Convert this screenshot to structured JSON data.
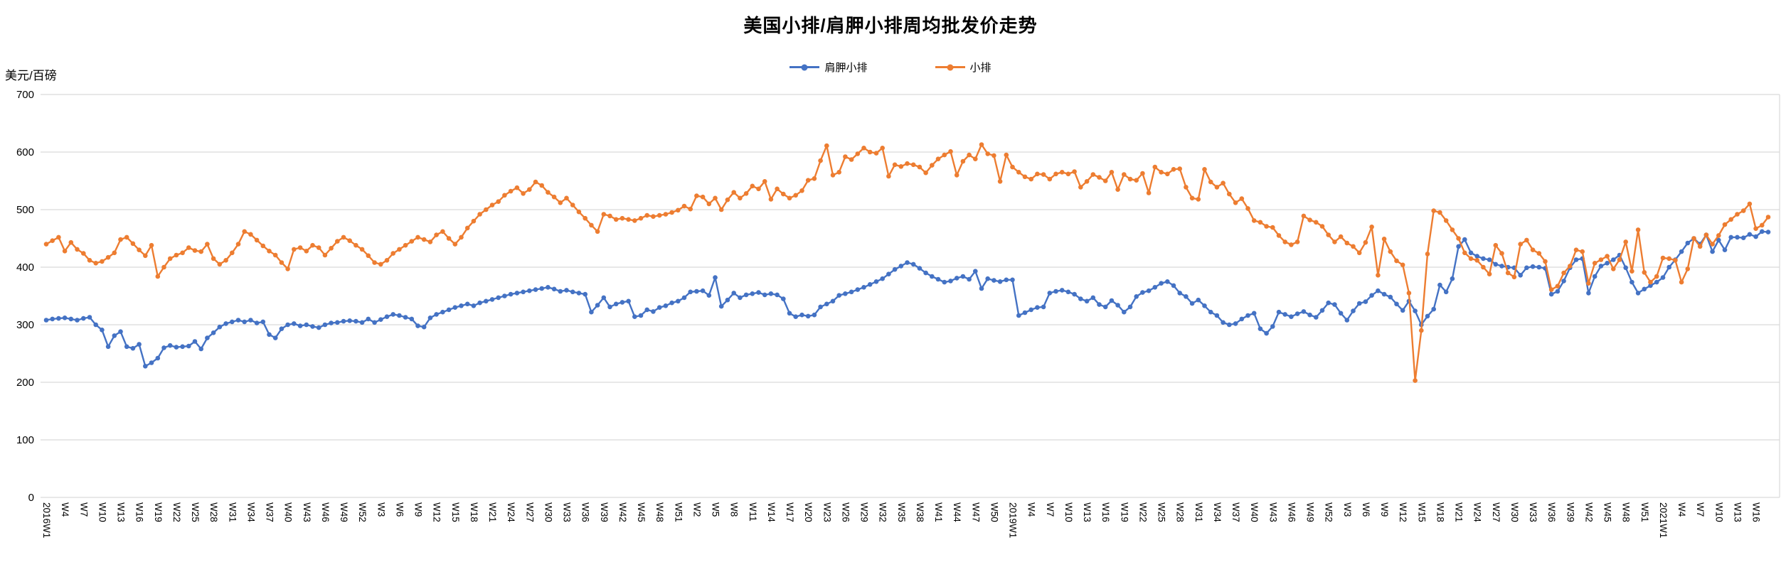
{
  "title": "美国小排/肩胛小排周均批发价走势",
  "y_axis": {
    "unit_label": "美元/百磅",
    "min": 0,
    "max": 700,
    "step": 100,
    "tick_labels": [
      "0",
      "100",
      "200",
      "300",
      "400",
      "500",
      "600",
      "700"
    ]
  },
  "legend": [
    {
      "label": "肩胛小排",
      "color": "#4472C4"
    },
    {
      "label": "小排",
      "color": "#ED7D31"
    }
  ],
  "colors": {
    "grid": "#D9D9D9",
    "text": "#000000",
    "background": "#FFFFFF"
  },
  "chart_data": {
    "type": "line",
    "title": "美国小排/肩胛小排周均批发价走势",
    "ylabel": "美元/百磅",
    "ylim": [
      0,
      700
    ],
    "grid": true,
    "legend_position": "top",
    "x": {
      "n_points": 279,
      "ticks_every": 3,
      "tick_labels": [
        "2016W1",
        "W4",
        "W7",
        "W10",
        "W13",
        "W16",
        "W19",
        "W22",
        "W25",
        "W28",
        "W31",
        "W34",
        "W37",
        "W40",
        "W43",
        "W46",
        "W49",
        "W52",
        "W3",
        "W6",
        "W9",
        "W12",
        "W15",
        "W18",
        "W21",
        "W24",
        "W27",
        "W30",
        "W33",
        "W36",
        "W39",
        "W42",
        "W45",
        "W48",
        "W51",
        "W2",
        "W5",
        "W8",
        "W11",
        "W14",
        "W17",
        "W20",
        "W23",
        "W26",
        "W29",
        "W32",
        "W35",
        "W38",
        "W41",
        "W44",
        "W47",
        "W50",
        "2019W1",
        "W4",
        "W7",
        "W10",
        "W13",
        "W16",
        "W19",
        "W22",
        "W25",
        "W28",
        "W31",
        "W34",
        "W37",
        "W40",
        "W43",
        "W46",
        "W49",
        "W52",
        "W3",
        "W6",
        "W9",
        "W12",
        "W15",
        "W18",
        "W21",
        "W24",
        "W27",
        "W30",
        "W33",
        "W36",
        "W39",
        "W42",
        "W45",
        "W48",
        "W51",
        "2021W1",
        "W4",
        "W7",
        "W10",
        "W13",
        "W16"
      ]
    },
    "series": [
      {
        "name": "肩胛小排",
        "color": "#4472C4",
        "values": [
          308,
          310,
          311,
          312,
          310,
          308,
          311,
          313,
          300,
          291,
          262,
          281,
          288,
          262,
          259,
          266,
          228,
          234,
          242,
          260,
          264,
          261,
          262,
          263,
          271,
          258,
          277,
          286,
          296,
          302,
          305,
          308,
          305,
          308,
          303,
          305,
          283,
          277,
          293,
          300,
          302,
          298,
          300,
          297,
          295,
          300,
          303,
          304,
          306,
          307,
          306,
          304,
          310,
          304,
          309,
          314,
          318,
          316,
          313,
          310,
          298,
          296,
          312,
          318,
          322,
          326,
          330,
          333,
          336,
          333,
          338,
          341,
          344,
          347,
          350,
          353,
          355,
          357,
          359,
          361,
          363,
          365,
          362,
          358,
          360,
          357,
          355,
          353,
          322,
          334,
          347,
          331,
          336,
          339,
          341,
          314,
          316,
          326,
          323,
          330,
          333,
          338,
          341,
          347,
          357,
          358,
          359,
          351,
          382,
          332,
          343,
          355,
          347,
          352,
          354,
          356,
          352,
          354,
          352,
          345,
          320,
          314,
          317,
          315,
          317,
          331,
          336,
          341,
          351,
          354,
          357,
          361,
          365,
          370,
          375,
          380,
          388,
          396,
          402,
          408,
          405,
          398,
          390,
          384,
          379,
          374,
          376,
          381,
          384,
          379,
          393,
          363,
          380,
          377,
          375,
          378,
          378,
          316,
          321,
          326,
          330,
          331,
          355,
          358,
          360,
          357,
          353,
          345,
          341,
          347,
          335,
          331,
          342,
          334,
          322,
          331,
          349,
          356,
          359,
          365,
          372,
          375,
          368,
          355,
          349,
          337,
          343,
          333,
          322,
          316,
          304,
          300,
          302,
          310,
          316,
          320,
          293,
          285,
          297,
          322,
          318,
          314,
          319,
          323,
          317,
          313,
          325,
          338,
          335,
          320,
          308,
          324,
          337,
          340,
          351,
          359,
          353,
          348,
          336,
          325,
          341,
          324,
          300,
          315,
          327,
          369,
          357,
          380,
          436,
          448,
          425,
          419,
          415,
          413,
          405,
          402,
          400,
          399,
          386,
          399,
          401,
          400,
          398,
          353,
          358,
          376,
          399,
          413,
          415,
          355,
          384,
          402,
          407,
          413,
          421,
          399,
          374,
          355,
          362,
          368,
          374,
          382,
          400,
          413,
          427,
          442,
          450,
          440,
          456,
          427,
          447,
          430,
          452,
          452,
          451,
          457,
          453,
          462,
          461
        ]
      },
      {
        "name": "小排",
        "color": "#ED7D31",
        "values": [
          440,
          446,
          452,
          428,
          443,
          431,
          424,
          412,
          407,
          410,
          417,
          425,
          448,
          452,
          441,
          430,
          420,
          438,
          384,
          400,
          415,
          421,
          425,
          434,
          429,
          427,
          440,
          415,
          405,
          412,
          425,
          440,
          462,
          457,
          447,
          437,
          428,
          421,
          408,
          397,
          431,
          434,
          428,
          438,
          434,
          421,
          433,
          445,
          452,
          446,
          438,
          431,
          420,
          408,
          405,
          412,
          424,
          431,
          438,
          445,
          452,
          448,
          444,
          456,
          462,
          450,
          440,
          452,
          468,
          480,
          492,
          500,
          508,
          514,
          525,
          532,
          538,
          528,
          535,
          548,
          542,
          530,
          522,
          512,
          520,
          508,
          496,
          485,
          473,
          462,
          492,
          489,
          483,
          485,
          483,
          481,
          485,
          490,
          488,
          490,
          492,
          495,
          499,
          506,
          501,
          524,
          522,
          510,
          520,
          500,
          517,
          530,
          520,
          528,
          541,
          536,
          549,
          518,
          536,
          527,
          520,
          525,
          533,
          551,
          554,
          585,
          611,
          560,
          565,
          592,
          587,
          597,
          607,
          600,
          598,
          607,
          558,
          578,
          575,
          580,
          578,
          574,
          564,
          577,
          588,
          595,
          601,
          560,
          584,
          595,
          588,
          613,
          597,
          594,
          549,
          595,
          574,
          565,
          557,
          553,
          562,
          561,
          553,
          562,
          565,
          562,
          566,
          539,
          549,
          561,
          556,
          550,
          565,
          535,
          561,
          553,
          551,
          563,
          529,
          574,
          565,
          562,
          570,
          571,
          539,
          520,
          518,
          570,
          548,
          539,
          546,
          527,
          512,
          519,
          502,
          481,
          478,
          471,
          469,
          455,
          444,
          439,
          444,
          489,
          482,
          478,
          471,
          456,
          444,
          453,
          442,
          436,
          425,
          443,
          470,
          386,
          449,
          427,
          411,
          404,
          355,
          203,
          290,
          423,
          498,
          495,
          481,
          465,
          450,
          425,
          415,
          412,
          400,
          388,
          438,
          424,
          390,
          383,
          440,
          447,
          430,
          424,
          410,
          361,
          367,
          390,
          402,
          430,
          427,
          372,
          407,
          413,
          419,
          397,
          413,
          444,
          393,
          465,
          391,
          374,
          384,
          416,
          415,
          412,
          374,
          397,
          450,
          436,
          456,
          440,
          455,
          474,
          483,
          492,
          498,
          510,
          467,
          473,
          487
        ]
      }
    ]
  }
}
